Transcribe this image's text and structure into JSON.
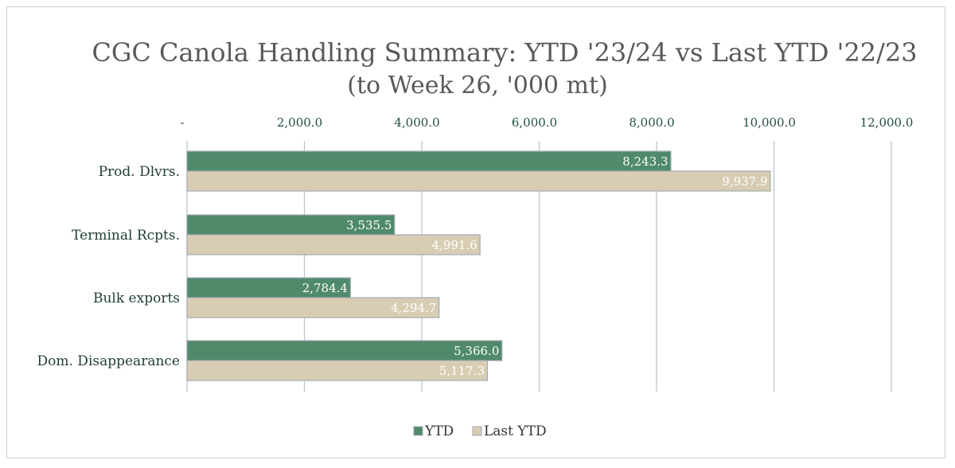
{
  "chart_data": {
    "type": "bar",
    "orientation": "horizontal",
    "title": "CGC Canola Handling Summary: YTD '23/24 vs Last YTD '22/23",
    "subtitle": "(to Week 26, '000 mt)",
    "categories": [
      "Prod. Dlvrs.",
      "Terminal Rcpts.",
      "Bulk exports",
      "Dom. Disappearance"
    ],
    "series": [
      {
        "name": "YTD",
        "values": [
          8243.3,
          3535.5,
          2784.4,
          5366.0
        ],
        "labels": [
          "8,243.3",
          "3,535.5",
          "2,784.4",
          "5,366.0"
        ],
        "color": "#4f8a6b"
      },
      {
        "name": "Last YTD",
        "values": [
          9937.9,
          4991.6,
          4294.7,
          5117.3
        ],
        "labels": [
          "9,937.9",
          "4,991.6",
          "4,294.7",
          "5,117.3"
        ],
        "color": "#d8cdb3"
      }
    ],
    "xlim": [
      0,
      12000
    ],
    "ticks": [
      0,
      2000,
      4000,
      6000,
      8000,
      10000,
      12000
    ],
    "tick_labels": [
      "-",
      "2,000.0",
      "4,000.0",
      "6,000.0",
      "8,000.0",
      "10,000.0",
      "12,000.0"
    ],
    "axis_position": "top",
    "grid": true,
    "legend_position": "bottom",
    "bar_border_color": "#a3a9b0",
    "gridline_color": "#b8c2cc"
  }
}
